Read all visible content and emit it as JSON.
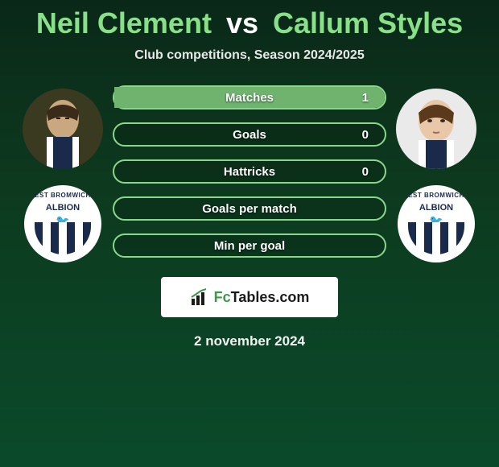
{
  "title": {
    "player1": "Neil Clement",
    "vs": "vs",
    "player2": "Callum Styles"
  },
  "subtitle": "Club competitions, Season 2024/2025",
  "stats": [
    {
      "label": "Matches",
      "value_right": "1",
      "fill_pct": 100,
      "fill_color": "#6fb36f"
    },
    {
      "label": "Goals",
      "value_right": "0",
      "fill_pct": 0,
      "fill_color": "#6fb36f"
    },
    {
      "label": "Hattricks",
      "value_right": "0",
      "fill_pct": 0,
      "fill_color": "#6fb36f"
    },
    {
      "label": "Goals per match",
      "value_right": "",
      "fill_pct": 0,
      "fill_color": "#6fb36f"
    },
    {
      "label": "Min per goal",
      "value_right": "",
      "fill_pct": 0,
      "fill_color": "#6fb36f"
    }
  ],
  "crest": {
    "top_text": "EST BROMWICH",
    "name": "ALBION"
  },
  "logo": {
    "prefix": "Fc",
    "suffix": "Tables.com"
  },
  "date": "2 november 2024",
  "colors": {
    "title_accent": "#88e088",
    "bar_border": "#8ad68a",
    "background_top": "#0a2818",
    "background_bottom": "#0a4a2a"
  }
}
